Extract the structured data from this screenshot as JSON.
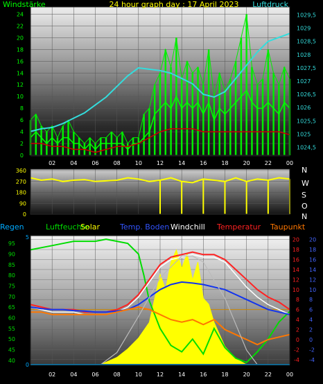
{
  "header": {
    "left": "Windstärke",
    "center": "24 hour graph day : 17 April 2023",
    "right": "Luftdruck"
  },
  "panel2_compass": [
    "N",
    "W",
    "S",
    "O",
    "N"
  ],
  "legend": {
    "regen": "Regen",
    "luftfeuchte": "Luftfeuchte",
    "solar": "Solar",
    "temp_boden": "Temp. Boden",
    "windchill": "Windchill",
    "temperatur": "Temperatur",
    "taupunkt": "Taupunkt"
  },
  "colors": {
    "wind": "#00ff00",
    "gust": "#00ee00",
    "wind_avg": "#cc0000",
    "pressure": "#33dddd",
    "direction": "#ffff00",
    "humidity": "#00dd00",
    "solar": "#ffff00",
    "soil_temp": "#1133ee",
    "windchill": "#ffffff",
    "temperature": "#ff2222",
    "dewpoint": "#ff7700",
    "rain": "#00aaff",
    "theory_solar": "#bbbbbb"
  },
  "chart_data": [
    {
      "type": "line",
      "title": "24 hour graph day : 17 April 2023",
      "x_ticks": [
        "02",
        "04",
        "06",
        "08",
        "10",
        "12",
        "14",
        "16",
        "18",
        "20",
        "22",
        "00"
      ],
      "x_hours": [
        0,
        24
      ],
      "y_left_label": "Windstärke",
      "y_left_ticks": [
        "0",
        "2",
        "4",
        "6",
        "8",
        "10",
        "12",
        "14",
        "16",
        "18",
        "20",
        "22",
        "24"
      ],
      "y_left_range": [
        0,
        25
      ],
      "y_right_label": "Luftdruck",
      "y_right_ticks": [
        "1024,5",
        "1025",
        "1025,5",
        "1026",
        "1026,5",
        "1027",
        "1027,5",
        "1028",
        "1028,5",
        "1029",
        "1029,5"
      ],
      "y_right_range": [
        1024.2,
        1029.75
      ],
      "series": [
        {
          "name": "",
          "key": "gust",
          "x": [
            0,
            0.5,
            1,
            1.5,
            2,
            2.5,
            3,
            3.5,
            4,
            4.5,
            5,
            5.5,
            6,
            6.5,
            7,
            7.5,
            8,
            8.5,
            9,
            9.5,
            10,
            10.5,
            11,
            11.5,
            12,
            12.5,
            13,
            13.5,
            14,
            14.5,
            15,
            15.5,
            16,
            16.5,
            17,
            17.5,
            18,
            18.5,
            19,
            19.5,
            20,
            20.5,
            21,
            21.5,
            22,
            22.5,
            23,
            23.5,
            24
          ],
          "y": [
            6,
            7,
            5,
            4,
            5,
            3,
            5,
            6,
            4,
            3,
            2,
            3,
            2,
            3,
            3,
            4,
            3,
            4,
            2,
            3,
            3,
            7,
            8,
            12,
            14,
            18,
            15,
            20,
            13,
            16,
            14,
            15,
            12,
            18,
            10,
            14,
            11,
            13,
            16,
            20,
            24,
            15,
            12,
            13,
            18,
            14,
            12,
            15,
            13
          ]
        },
        {
          "name": "",
          "key": "wind",
          "x": [
            0,
            0.5,
            1,
            1.5,
            2,
            2.5,
            3,
            3.5,
            4,
            4.5,
            5,
            5.5,
            6,
            6.5,
            7,
            7.5,
            8,
            8.5,
            9,
            9.5,
            10,
            10.5,
            11,
            11.5,
            12,
            12.5,
            13,
            13.5,
            14,
            14.5,
            15,
            15.5,
            16,
            16.5,
            17,
            17.5,
            18,
            18.5,
            19,
            19.5,
            20,
            20.5,
            21,
            21.5,
            22,
            22.5,
            23,
            23.5,
            24
          ],
          "y": [
            3,
            4,
            3,
            2,
            3,
            2,
            3,
            3,
            2,
            2,
            1,
            2,
            1,
            2,
            2,
            2,
            2,
            2,
            1,
            2,
            2,
            3,
            4,
            7,
            8,
            9,
            8,
            10,
            8,
            9,
            8,
            9,
            7,
            9,
            6,
            8,
            7,
            8,
            9,
            10,
            11,
            9,
            8,
            8,
            9,
            8,
            7,
            9,
            8
          ]
        },
        {
          "name": "",
          "key": "wind_avg",
          "x": [
            0,
            1,
            2,
            3,
            4,
            5,
            6,
            7,
            8,
            9,
            10,
            11,
            12,
            13,
            14,
            15,
            16,
            17,
            18,
            19,
            20,
            21,
            22,
            23,
            24
          ],
          "y": [
            2,
            2,
            1.5,
            1.5,
            1,
            1,
            0.5,
            1,
            1.5,
            1.5,
            2,
            3,
            4,
            4.5,
            4.5,
            4.5,
            4,
            4,
            4,
            4,
            4,
            4,
            4,
            4,
            3.5
          ]
        },
        {
          "name": "",
          "key": "pressure",
          "axis": "right",
          "x": [
            0,
            1,
            2,
            3,
            4,
            5,
            6,
            7,
            8,
            9,
            10,
            11,
            12,
            13,
            14,
            15,
            16,
            17,
            18,
            19,
            20,
            21,
            22,
            23,
            24
          ],
          "y": [
            1025.1,
            1025.2,
            1025.25,
            1025.4,
            1025.6,
            1025.8,
            1026.1,
            1026.4,
            1026.8,
            1027.2,
            1027.5,
            1027.45,
            1027.4,
            1027.3,
            1027.1,
            1026.9,
            1026.5,
            1026.4,
            1026.6,
            1027.1,
            1027.6,
            1028.1,
            1028.5,
            1028.65,
            1028.8
          ]
        }
      ]
    },
    {
      "type": "scatter",
      "y_ticks": [
        "0",
        "90",
        "180",
        "270",
        "360"
      ],
      "y_range": [
        0,
        360
      ],
      "series": [
        {
          "name": "",
          "key": "direction",
          "x": [
            0,
            1,
            2,
            3,
            4,
            5,
            6,
            7,
            8,
            9,
            10,
            11,
            12,
            13,
            14,
            15,
            16,
            17,
            18,
            19,
            20,
            21,
            22,
            23,
            24
          ],
          "y": [
            300,
            280,
            290,
            270,
            280,
            285,
            270,
            275,
            280,
            300,
            290,
            270,
            280,
            300,
            270,
            260,
            290,
            280,
            270,
            300,
            270,
            290,
            280,
            300,
            290
          ]
        }
      ]
    },
    {
      "type": "line",
      "legend_position": "top",
      "y_left_ticks": [
        "40",
        "45",
        "50",
        "55",
        "60",
        "65",
        "70",
        "75",
        "80",
        "85",
        "90",
        "95"
      ],
      "y_left_range": [
        38,
        98
      ],
      "y_right_ticks": [
        "-4",
        "-2",
        "0",
        "2",
        "4",
        "6",
        "8",
        "10",
        "12",
        "14",
        "16",
        "18",
        "20"
      ],
      "y_right_range": [
        -5,
        20.5
      ],
      "y_rain_ticks": [
        "0",
        "5"
      ],
      "series": [
        {
          "name": "Luftfeuchte",
          "key": "humidity",
          "axis": "left",
          "x": [
            0,
            1,
            2,
            3,
            4,
            5,
            6,
            7,
            8,
            9,
            10,
            10.5,
            11,
            12,
            13,
            14,
            15,
            16,
            17,
            18,
            19,
            20,
            21,
            22,
            23,
            24
          ],
          "y": [
            92,
            93,
            94,
            95,
            96,
            96,
            96,
            97,
            96,
            95,
            90,
            80,
            68,
            55,
            47,
            44,
            50,
            43,
            55,
            46,
            41,
            39,
            44,
            50,
            58,
            63
          ]
        },
        {
          "name": "Temperatur",
          "key": "temperature",
          "axis": "right",
          "x": [
            0,
            1,
            2,
            3,
            4,
            5,
            6,
            7,
            8,
            9,
            10,
            11,
            12,
            13,
            14,
            15,
            16,
            17,
            18,
            19,
            20,
            21,
            22,
            23,
            24
          ],
          "y": [
            7,
            6.5,
            6,
            6,
            6,
            5.5,
            5.5,
            5.5,
            6,
            7,
            9,
            12,
            15,
            16.5,
            17,
            17.5,
            17,
            17,
            16,
            14,
            12,
            10,
            8.5,
            7.5,
            6
          ]
        },
        {
          "name": "Windchill",
          "key": "windchill",
          "axis": "right",
          "x": [
            0,
            1,
            2,
            3,
            4,
            5,
            6,
            7,
            8,
            9,
            10,
            11,
            12,
            13,
            14,
            15,
            16,
            17,
            18,
            19,
            20,
            21,
            22,
            23,
            24
          ],
          "y": [
            6.5,
            6,
            5.5,
            5.5,
            5.5,
            5,
            5,
            5,
            5.5,
            6.5,
            8.5,
            11.5,
            14.5,
            16,
            16.5,
            17,
            16.5,
            16.5,
            15.5,
            13,
            10.5,
            8.5,
            7,
            6,
            5
          ]
        },
        {
          "name": "Temp. Boden",
          "key": "soil_temp",
          "axis": "right",
          "x": [
            0,
            1,
            2,
            3,
            4,
            5,
            6,
            7,
            8,
            9,
            10,
            11,
            12,
            13,
            14,
            15,
            16,
            17,
            18,
            19,
            20,
            21,
            22,
            23,
            24
          ],
          "y": [
            6.5,
            6.2,
            6,
            6,
            5.8,
            5.7,
            5.5,
            5.5,
            5.7,
            6,
            7,
            8.5,
            10,
            11,
            11.5,
            11.3,
            11,
            10.5,
            10,
            9,
            8,
            7,
            6,
            5.5,
            5
          ]
        },
        {
          "name": "Taupunkt",
          "key": "dewpoint",
          "axis": "right",
          "x": [
            0,
            1,
            2,
            3,
            4,
            5,
            6,
            7,
            8,
            9,
            10,
            11,
            12,
            13,
            14,
            15,
            16,
            17,
            18,
            19,
            20,
            21,
            22,
            23,
            24
          ],
          "y": [
            5.5,
            5.5,
            5,
            5,
            5,
            5,
            5,
            5,
            5.5,
            6,
            6.5,
            6,
            5,
            4,
            3.5,
            4,
            3,
            4,
            2,
            1,
            0,
            -1,
            0,
            0.5,
            1
          ]
        },
        {
          "name": "Solar",
          "key": "solar",
          "axis": "solar",
          "x": [
            6.5,
            7,
            8,
            9,
            10,
            11,
            11.5,
            12,
            12.5,
            13,
            13.5,
            14,
            14.5,
            15,
            15.5,
            16,
            16.5,
            17,
            17.5,
            18,
            19,
            20
          ],
          "y": [
            0,
            0.02,
            0.06,
            0.13,
            0.22,
            0.35,
            0.55,
            0.75,
            0.62,
            0.85,
            0.95,
            0.8,
            0.92,
            0.7,
            0.85,
            0.55,
            0.5,
            0.35,
            0.25,
            0.15,
            0.05,
            0
          ]
        },
        {
          "name": "",
          "key": "theory_solar",
          "axis": "solar",
          "x": [
            6.5,
            8,
            10,
            12,
            14,
            15,
            16,
            18,
            20,
            21
          ],
          "y": [
            0,
            0.1,
            0.4,
            0.72,
            0.9,
            0.9,
            0.85,
            0.55,
            0.12,
            0
          ]
        },
        {
          "name": "Regen",
          "key": "rain",
          "axis": "rain",
          "x": [
            0,
            24
          ],
          "y": [
            0,
            0
          ]
        }
      ]
    }
  ]
}
